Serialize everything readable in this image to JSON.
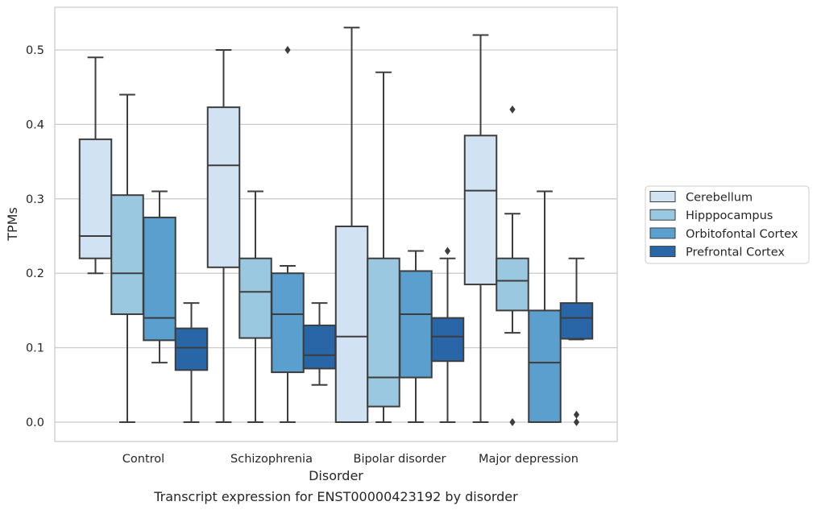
{
  "chart_data": {
    "type": "box",
    "title": "",
    "caption": "Transcript expression for ENST00000423192 by disorder",
    "xlabel": "Disorder",
    "ylabel": "TPMs",
    "ylim": [
      -0.025,
      0.56
    ],
    "yticks": [
      0.0,
      0.1,
      0.2,
      0.3,
      0.4,
      0.5
    ],
    "ytick_labels": [
      "0.0",
      "0.1",
      "0.2",
      "0.3",
      "0.4",
      "0.5"
    ],
    "grid": "horizontal",
    "legend_position": "right",
    "categories": [
      "Control",
      "Schizophrenia",
      "Bipolar disorder",
      "Major depression"
    ],
    "series": [
      {
        "name": "Cerebellum",
        "color": "#d1e2f2",
        "boxes": [
          {
            "whisker_low": 0.2,
            "q1": 0.22,
            "median": 0.25,
            "q3": 0.38,
            "whisker_high": 0.49,
            "outliers": []
          },
          {
            "whisker_low": 0.0,
            "q1": 0.208,
            "median": 0.345,
            "q3": 0.423,
            "whisker_high": 0.5,
            "outliers": []
          },
          {
            "whisker_low": 0.0,
            "q1": 0.0,
            "median": 0.115,
            "q3": 0.263,
            "whisker_high": 0.53,
            "outliers": []
          },
          {
            "whisker_low": 0.0,
            "q1": 0.185,
            "median": 0.311,
            "q3": 0.385,
            "whisker_high": 0.52,
            "outliers": []
          }
        ]
      },
      {
        "name": "Hipppocampus",
        "color": "#9ac8e0",
        "boxes": [
          {
            "whisker_low": 0.0,
            "q1": 0.145,
            "median": 0.2,
            "q3": 0.305,
            "whisker_high": 0.44,
            "outliers": []
          },
          {
            "whisker_low": 0.0,
            "q1": 0.113,
            "median": 0.175,
            "q3": 0.22,
            "whisker_high": 0.31,
            "outliers": []
          },
          {
            "whisker_low": 0.0,
            "q1": 0.021,
            "median": 0.06,
            "q3": 0.22,
            "whisker_high": 0.47,
            "outliers": []
          },
          {
            "whisker_low": 0.12,
            "q1": 0.15,
            "median": 0.19,
            "q3": 0.22,
            "whisker_high": 0.28,
            "outliers": [
              0.42,
              0.0
            ]
          }
        ]
      },
      {
        "name": "Orbitofontal Cortex",
        "color": "#5a9fcd",
        "boxes": [
          {
            "whisker_low": 0.08,
            "q1": 0.11,
            "median": 0.14,
            "q3": 0.275,
            "whisker_high": 0.31,
            "outliers": []
          },
          {
            "whisker_low": 0.0,
            "q1": 0.067,
            "median": 0.145,
            "q3": 0.2,
            "whisker_high": 0.21,
            "outliers": [
              0.5
            ]
          },
          {
            "whisker_low": 0.0,
            "q1": 0.06,
            "median": 0.145,
            "q3": 0.203,
            "whisker_high": 0.23,
            "outliers": []
          },
          {
            "whisker_low": 0.0,
            "q1": 0.0,
            "median": 0.08,
            "q3": 0.15,
            "whisker_high": 0.31,
            "outliers": []
          }
        ]
      },
      {
        "name": "Prefrontal Cortex",
        "color": "#2866a8",
        "boxes": [
          {
            "whisker_low": 0.0,
            "q1": 0.07,
            "median": 0.1,
            "q3": 0.126,
            "whisker_high": 0.16,
            "outliers": []
          },
          {
            "whisker_low": 0.05,
            "q1": 0.072,
            "median": 0.09,
            "q3": 0.13,
            "whisker_high": 0.16,
            "outliers": []
          },
          {
            "whisker_low": 0.0,
            "q1": 0.082,
            "median": 0.115,
            "q3": 0.14,
            "whisker_high": 0.22,
            "outliers": [
              0.23
            ]
          },
          {
            "whisker_low": 0.111,
            "q1": 0.112,
            "median": 0.14,
            "q3": 0.16,
            "whisker_high": 0.22,
            "outliers": [
              0.01,
              0.0
            ]
          }
        ]
      }
    ]
  }
}
